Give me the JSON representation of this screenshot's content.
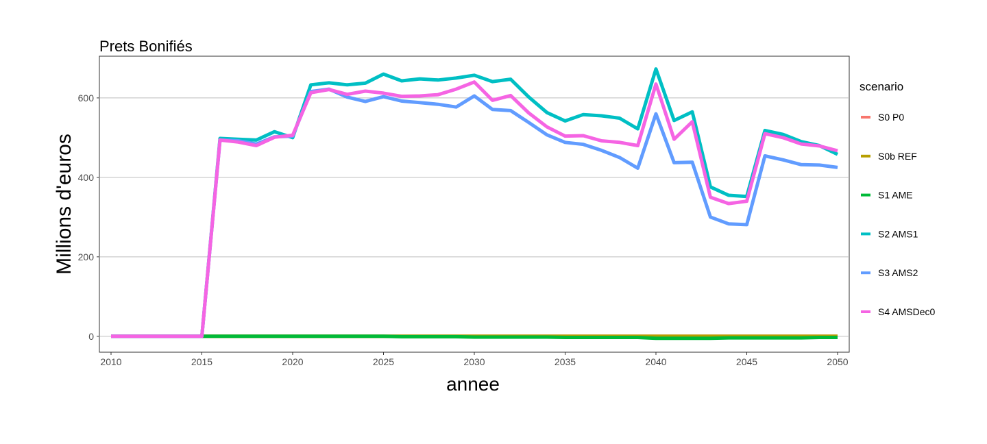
{
  "chart_data": {
    "type": "line",
    "title": "Prets Bonifiés",
    "xlabel": "annee",
    "ylabel": "Millions d'euros",
    "xlim": [
      2010,
      2050
    ],
    "ylim": [
      -40,
      705
    ],
    "x_ticks": [
      2010,
      2015,
      2020,
      2025,
      2030,
      2035,
      2040,
      2045,
      2050
    ],
    "y_ticks": [
      0,
      200,
      400,
      600
    ],
    "grid": "horizontal major",
    "legend": {
      "title": "scenario",
      "position": "right"
    },
    "x": [
      2010,
      2011,
      2012,
      2013,
      2014,
      2015,
      2016,
      2017,
      2018,
      2019,
      2020,
      2021,
      2022,
      2023,
      2024,
      2025,
      2026,
      2027,
      2028,
      2029,
      2030,
      2031,
      2032,
      2033,
      2034,
      2035,
      2036,
      2037,
      2038,
      2039,
      2040,
      2041,
      2042,
      2043,
      2044,
      2045,
      2046,
      2047,
      2048,
      2049,
      2050
    ],
    "series": [
      {
        "name": "S0 P0",
        "color": "#F8766D",
        "values": [
          0,
          0,
          0,
          0,
          0,
          0,
          0,
          0,
          0,
          0,
          0,
          0,
          0,
          0,
          0,
          0,
          0,
          0,
          0,
          0,
          0,
          0,
          0,
          0,
          0,
          0,
          0,
          0,
          0,
          0,
          0,
          0,
          0,
          0,
          0,
          0,
          0,
          0,
          0,
          0,
          0
        ]
      },
      {
        "name": "S0b REF",
        "color": "#B79F00",
        "values": [
          0,
          0,
          0,
          0,
          0,
          0,
          0,
          0,
          0,
          0,
          0,
          0,
          0,
          0,
          0,
          0,
          0,
          0,
          0,
          0,
          0,
          0,
          0,
          0,
          0,
          0,
          0,
          0,
          0,
          0,
          0,
          0,
          0,
          0,
          0,
          0,
          0,
          0,
          0,
          0,
          0
        ]
      },
      {
        "name": "S1 AME",
        "color": "#00BA38",
        "values": [
          0,
          0,
          0,
          0,
          0,
          0,
          0,
          0,
          0,
          0,
          0,
          0,
          0,
          0,
          0,
          0,
          -1,
          -1,
          -1,
          -1,
          -2,
          -2,
          -2,
          -2,
          -2,
          -3,
          -3,
          -3,
          -3,
          -3,
          -5,
          -5,
          -5,
          -5,
          -4,
          -4,
          -4,
          -4,
          -4,
          -3,
          -3
        ]
      },
      {
        "name": "S2 AMS1",
        "color": "#00BFC4",
        "values": [
          0,
          0,
          0,
          0,
          0,
          0,
          498,
          496,
          494,
          515,
          500,
          633,
          638,
          633,
          637,
          660,
          643,
          648,
          645,
          650,
          657,
          641,
          647,
          602,
          563,
          542,
          558,
          555,
          549,
          522,
          673,
          543,
          565,
          376,
          355,
          352,
          518,
          508,
          490,
          480,
          458
        ]
      },
      {
        "name": "S3 AMS2",
        "color": "#619CFF",
        "values": [
          0,
          0,
          0,
          0,
          0,
          0,
          494,
          492,
          484,
          502,
          504,
          616,
          622,
          602,
          591,
          603,
          592,
          588,
          584,
          577,
          605,
          571,
          568,
          538,
          507,
          488,
          483,
          468,
          450,
          423,
          560,
          437,
          438,
          300,
          283,
          281,
          454,
          444,
          432,
          431,
          425
        ]
      },
      {
        "name": "S4 AMSDec0",
        "color": "#F564E3",
        "values": [
          0,
          0,
          0,
          0,
          0,
          0,
          494,
          489,
          480,
          501,
          506,
          613,
          621,
          609,
          617,
          612,
          604,
          605,
          608,
          622,
          640,
          594,
          606,
          562,
          527,
          504,
          505,
          492,
          488,
          480,
          635,
          496,
          540,
          350,
          334,
          340,
          510,
          500,
          484,
          479,
          467
        ]
      }
    ]
  }
}
